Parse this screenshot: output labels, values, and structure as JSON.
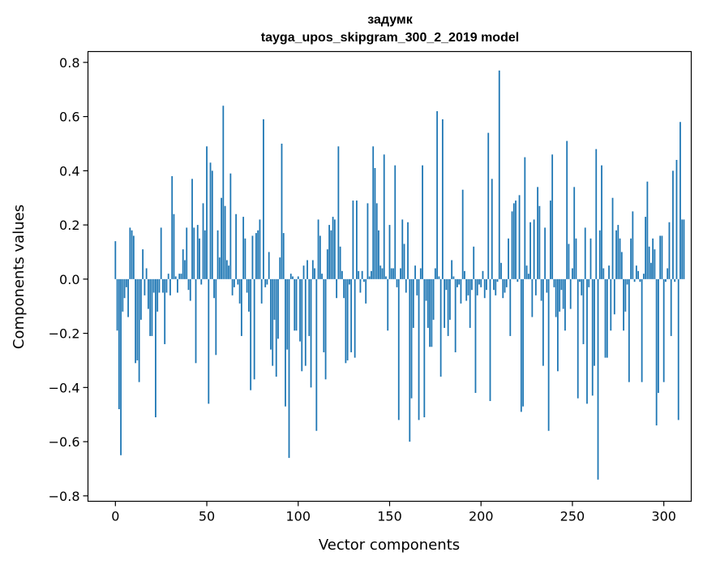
{
  "chart_data": {
    "type": "bar",
    "title": "задумк",
    "subtitle": "tayga_upos_skipgram_300_2_2019 model",
    "xlabel": "Vector components",
    "ylabel": "Components values",
    "xlim": [
      -15,
      315
    ],
    "ylim": [
      -0.82,
      0.84
    ],
    "xticks": [
      0,
      50,
      100,
      150,
      200,
      250,
      300
    ],
    "yticks": [
      -0.8,
      -0.6,
      -0.4,
      -0.2,
      0.0,
      0.2,
      0.4,
      0.6,
      0.8
    ],
    "ytick_labels": [
      "−0.8",
      "−0.6",
      "−0.4",
      "−0.2",
      "0.0",
      "0.2",
      "0.4",
      "0.6",
      "0.8"
    ],
    "bar_color": "#1f77b4",
    "values": [
      0.14,
      -0.19,
      -0.48,
      -0.65,
      -0.12,
      -0.07,
      -0.03,
      -0.14,
      0.19,
      0.18,
      0.16,
      -0.31,
      -0.3,
      -0.38,
      -0.15,
      0.11,
      -0.06,
      0.04,
      -0.11,
      -0.21,
      -0.21,
      -0.05,
      -0.51,
      -0.12,
      -0.05,
      0.19,
      -0.05,
      -0.24,
      -0.05,
      0.02,
      -0.06,
      0.38,
      0.24,
      0.01,
      -0.05,
      0.02,
      0.02,
      0.11,
      0.07,
      0.19,
      -0.04,
      -0.08,
      0.37,
      0.19,
      -0.31,
      0.2,
      0.15,
      -0.02,
      0.28,
      0.18,
      0.49,
      -0.46,
      0.43,
      0.4,
      -0.07,
      -0.28,
      0.18,
      0.08,
      0.3,
      0.64,
      0.27,
      0.07,
      0.05,
      0.39,
      -0.06,
      -0.03,
      0.24,
      -0.02,
      -0.09,
      -0.21,
      0.23,
      0.15,
      -0.05,
      -0.12,
      -0.41,
      0.16,
      -0.37,
      0.17,
      0.18,
      0.22,
      -0.09,
      0.59,
      -0.03,
      -0.02,
      0.1,
      -0.26,
      -0.32,
      -0.15,
      -0.36,
      -0.22,
      0.08,
      0.5,
      0.17,
      -0.47,
      -0.26,
      -0.66,
      0.02,
      0.01,
      -0.19,
      -0.19,
      0.01,
      -0.23,
      -0.34,
      0.05,
      -0.32,
      0.07,
      -0.21,
      -0.4,
      0.07,
      0.04,
      -0.56,
      0.22,
      0.16,
      0.02,
      -0.27,
      -0.37,
      0.11,
      0.2,
      0.18,
      0.23,
      0.22,
      -0.07,
      0.49,
      0.12,
      0.03,
      -0.07,
      -0.31,
      -0.3,
      -0.02,
      -0.27,
      0.29,
      -0.29,
      0.29,
      0.03,
      -0.05,
      0.03,
      -0.01,
      -0.09,
      0.28,
      0.01,
      0.03,
      0.49,
      0.41,
      0.28,
      0.18,
      0.05,
      0.04,
      0.46,
      0.01,
      -0.19,
      0.2,
      0.04,
      0.04,
      0.42,
      -0.03,
      -0.52,
      0.04,
      0.22,
      0.13,
      -0.05,
      0.21,
      -0.6,
      -0.44,
      -0.18,
      0.05,
      -0.06,
      -0.52,
      0.04,
      0.42,
      -0.51,
      -0.08,
      -0.18,
      -0.25,
      -0.25,
      -0.15,
      0.04,
      0.62,
      0.01,
      -0.36,
      0.59,
      -0.18,
      -0.04,
      -0.21,
      -0.15,
      0.07,
      0.01,
      -0.27,
      -0.03,
      -0.02,
      -0.09,
      0.33,
      0.03,
      -0.08,
      -0.06,
      -0.18,
      -0.04,
      0.12,
      -0.42,
      -0.06,
      -0.02,
      -0.03,
      0.03,
      -0.07,
      -0.04,
      0.54,
      -0.45,
      0.37,
      -0.04,
      -0.06,
      -0.01,
      0.77,
      0.06,
      -0.07,
      -0.05,
      -0.03,
      0.15,
      -0.21,
      0.25,
      0.28,
      0.29,
      -0.01,
      0.31,
      -0.49,
      -0.47,
      0.45,
      0.05,
      0.02,
      0.21,
      -0.14,
      0.22,
      -0.06,
      0.34,
      0.27,
      -0.08,
      -0.32,
      0.19,
      -0.05,
      -0.56,
      0.29,
      0.46,
      -0.03,
      -0.14,
      -0.34,
      -0.12,
      -0.04,
      -0.11,
      -0.19,
      0.51,
      0.13,
      -0.11,
      0.04,
      0.34,
      0.15,
      -0.44,
      -0.01,
      -0.06,
      -0.24,
      0.19,
      -0.46,
      -0.03,
      0.15,
      -0.43,
      -0.32,
      0.48,
      -0.74,
      0.18,
      0.42,
      0.04,
      -0.29,
      -0.29,
      0.05,
      -0.19,
      0.3,
      -0.13,
      0.18,
      0.2,
      0.15,
      0.1,
      -0.19,
      -0.12,
      -0.02,
      -0.38,
      0.15,
      0.25,
      -0.01,
      0.05,
      0.03,
      -0.01,
      -0.38,
      0.02,
      0.23,
      0.36,
      0.12,
      0.06,
      0.15,
      0.11,
      -0.54,
      -0.42,
      0.16,
      0.16,
      -0.38,
      -0.01,
      0.04,
      0.21,
      -0.21,
      0.4,
      -0.01,
      0.44,
      -0.52,
      0.58,
      0.22,
      0.22
    ]
  }
}
